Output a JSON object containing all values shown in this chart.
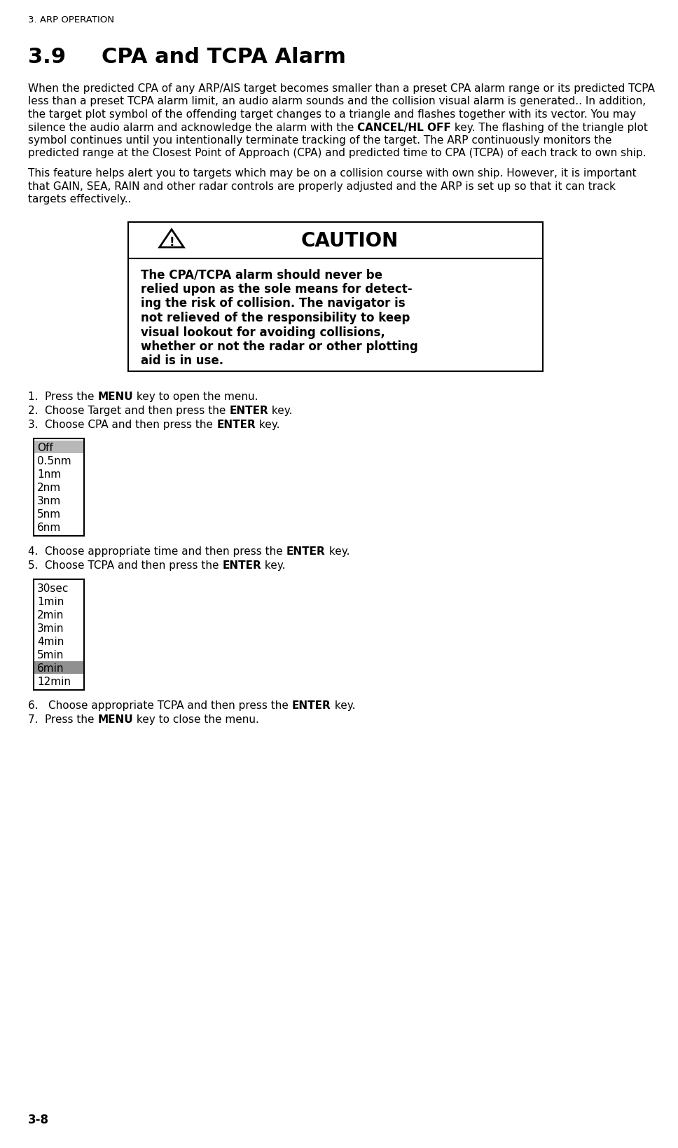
{
  "page_header": "3. ARP OPERATION",
  "section_number": "3.9",
  "section_title": "CPA and TCPA Alarm",
  "para1_pre": "When the predicted CPA of any ARP/AIS target becomes smaller than a preset CPA alarm range or its predicted TCPA less than a preset TCPA alarm limit, an audio alarm sounds and the collision visual alarm is generated.. In addition, the target plot symbol of the offending target changes to a triangle and flashes together with its vector. You may silence the audio alarm and acknowledge the alarm with the ",
  "para1_bold": "CANCEL/HL OFF",
  "para1_post": " key. The flashing of the triangle plot symbol continues until you intentionally terminate tracking of the target. The ARP continuously monitors the predicted range at the Closest Point of Approach (CPA) and predicted time to CPA (TCPA) of each track to own ship.",
  "para2": "This feature helps alert you to targets which may be on a collision course with own ship. However, it is important that GAIN, SEA, RAIN and other radar controls are properly adjusted and the ARP is set up so that it can track targets effectively..",
  "caution_body_lines": [
    "The CPA/TCPA alarm should never be",
    "relied upon as the sole means for detect-",
    "ing the risk of collision. The navigator is",
    "not relieved of the responsibility to keep",
    "visual lookout for avoiding collisions,",
    "whether or not the radar or other plotting",
    "aid is in use."
  ],
  "steps": [
    {
      "num": "1.  ",
      "pre": "Press the ",
      "bold": "MENU",
      "post": " key to open the menu."
    },
    {
      "num": "2.  ",
      "pre": "Choose Target and then press the ",
      "bold": "ENTER",
      "post": " key."
    },
    {
      "num": "3.  ",
      "pre": "Choose CPA and then press the ",
      "bold": "ENTER",
      "post": " key."
    },
    {
      "num": "4.  ",
      "pre": "Choose appropriate time and then press the ",
      "bold": "ENTER",
      "post": " key."
    },
    {
      "num": "5.  ",
      "pre": "Choose TCPA and then press the ",
      "bold": "ENTER",
      "post": " key."
    },
    {
      "num": "6.   ",
      "pre": "Choose appropriate TCPA and then press the ",
      "bold": "ENTER",
      "post": " key."
    },
    {
      "num": "7.  ",
      "pre": "Press the ",
      "bold": "MENU",
      "post": " key to close the menu."
    }
  ],
  "cpa_menu": [
    "Off",
    "0.5nm",
    "1nm",
    "2nm",
    "3nm",
    "5nm",
    "6nm"
  ],
  "cpa_highlight": 0,
  "tcpa_menu": [
    "30sec",
    "1min",
    "2min",
    "3min",
    "4min",
    "5min",
    "6min",
    "12min"
  ],
  "tcpa_highlight": 6,
  "page_footer": "3-8",
  "bg_color": "#ffffff",
  "text_color": "#000000",
  "highlight_color": "#b8b8b8",
  "tcpa_highlight_color": "#909090",
  "border_color": "#000000"
}
